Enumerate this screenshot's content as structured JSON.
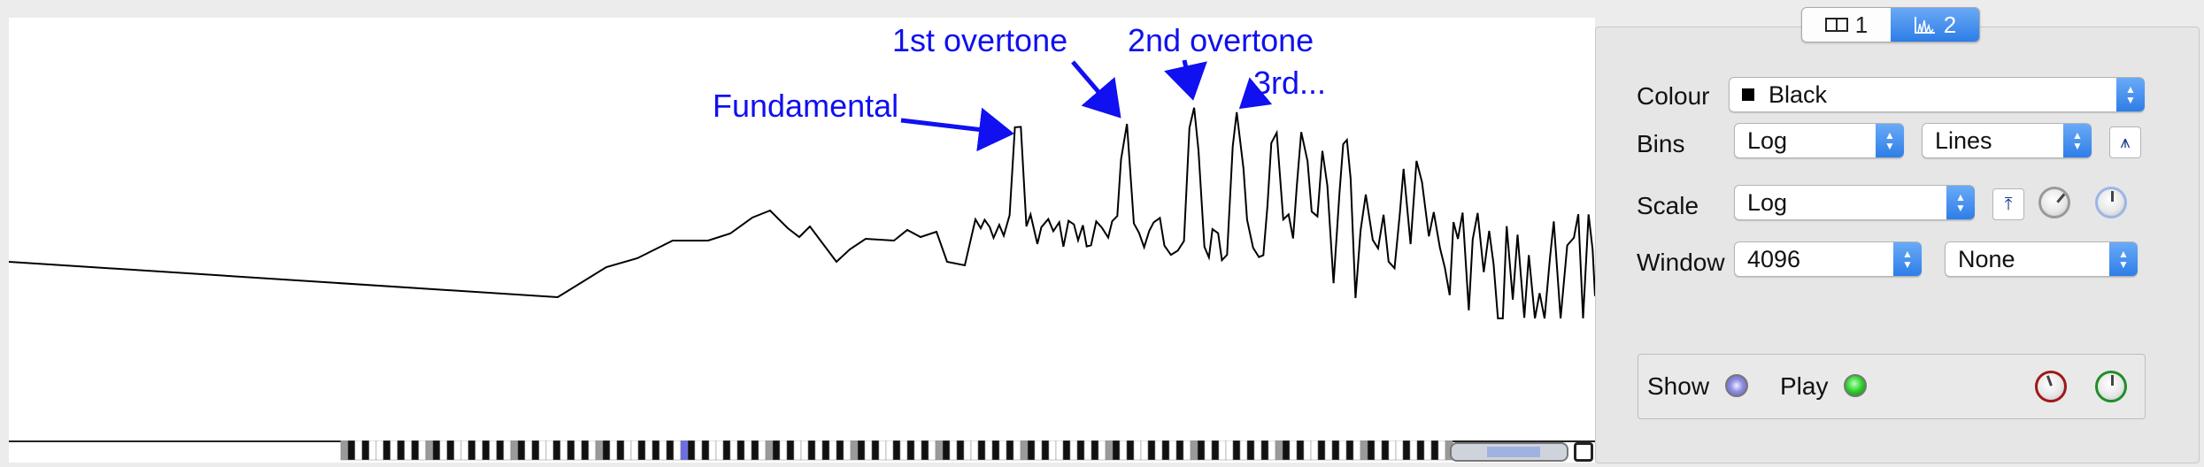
{
  "annotations": {
    "fundamental": "Fundamental",
    "first_overtone": "1st overtone",
    "second_overtone": "2nd overtone",
    "third": "3rd..."
  },
  "annotation_color": "#1010f0",
  "tabs": [
    {
      "label": "1",
      "icon": "split-pane-icon",
      "selected": false
    },
    {
      "label": "2",
      "icon": "spectrum-icon",
      "selected": true
    }
  ],
  "settings": {
    "colour_label": "Colour",
    "colour_value": "Black",
    "bins_label": "Bins",
    "bins_value": "Log",
    "bins_mode_value": "Lines",
    "scale_label": "Scale",
    "scale_value": "Log",
    "window_label": "Window",
    "window_value": "4096",
    "window_type_value": "None"
  },
  "playback": {
    "show_label": "Show",
    "play_label": "Play"
  },
  "accent_color": "#2e7ee8"
}
